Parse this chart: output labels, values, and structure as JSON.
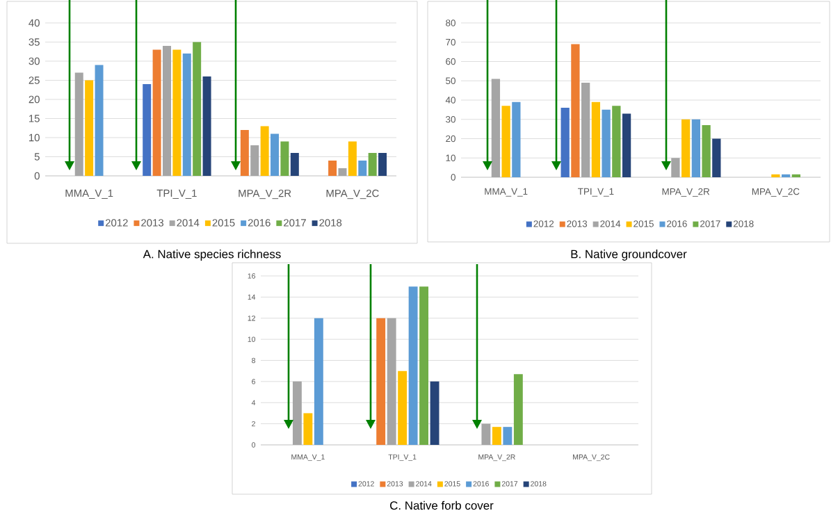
{
  "chart_data": [
    {
      "type": "bar",
      "title": "A. Native species richness",
      "categories": [
        "MMA_V_1",
        "TPI_V_1",
        "MPA_V_2R",
        "MPA_V_2C"
      ],
      "ylim": [
        0,
        40
      ],
      "yticks": [
        0,
        5,
        10,
        15,
        20,
        25,
        30,
        35,
        40
      ],
      "grid": "y",
      "legend": "bottom",
      "series": [
        {
          "name": "2012",
          "color": "#4472c4",
          "values": [
            null,
            24,
            null,
            null
          ]
        },
        {
          "name": "2013",
          "color": "#ed7d31",
          "values": [
            null,
            33,
            12,
            4
          ]
        },
        {
          "name": "2014",
          "color": "#a5a5a5",
          "values": [
            27,
            34,
            8,
            2
          ]
        },
        {
          "name": "2015",
          "color": "#ffc000",
          "values": [
            25,
            33,
            13,
            9
          ]
        },
        {
          "name": "2016",
          "color": "#5b9bd5",
          "values": [
            29,
            32,
            11,
            4
          ]
        },
        {
          "name": "2017",
          "color": "#70ad47",
          "values": [
            null,
            35,
            9,
            6
          ]
        },
        {
          "name": "2018",
          "color": "#264478",
          "values": [
            null,
            26,
            6,
            6
          ]
        }
      ]
    },
    {
      "type": "bar",
      "title": "B. Native groundcover",
      "categories": [
        "MMA_V_1",
        "TPI_V_1",
        "MPA_V_2R",
        "MPA_V_2C"
      ],
      "ylim": [
        0,
        80
      ],
      "yticks": [
        0,
        10,
        20,
        30,
        40,
        50,
        60,
        70,
        80
      ],
      "grid": "y",
      "legend": "bottom",
      "series": [
        {
          "name": "2012",
          "color": "#4472c4",
          "values": [
            null,
            36,
            null,
            null
          ]
        },
        {
          "name": "2013",
          "color": "#ed7d31",
          "values": [
            null,
            69,
            null,
            null
          ]
        },
        {
          "name": "2014",
          "color": "#a5a5a5",
          "values": [
            51,
            49,
            10,
            null
          ]
        },
        {
          "name": "2015",
          "color": "#ffc000",
          "values": [
            37,
            39,
            30,
            1.5
          ]
        },
        {
          "name": "2016",
          "color": "#5b9bd5",
          "values": [
            39,
            35,
            30,
            1.5
          ]
        },
        {
          "name": "2017",
          "color": "#70ad47",
          "values": [
            null,
            37,
            27,
            1.5
          ]
        },
        {
          "name": "2018",
          "color": "#264478",
          "values": [
            null,
            33,
            20,
            null
          ]
        }
      ]
    },
    {
      "type": "bar",
      "title": "C. Native forb cover",
      "categories": [
        "MMA_V_1",
        "TPI_V_1",
        "MPA_V_2R",
        "MPA_V_2C"
      ],
      "ylim": [
        0,
        16
      ],
      "yticks": [
        0,
        2,
        4,
        6,
        8,
        10,
        12,
        14,
        16
      ],
      "grid": "y",
      "legend": "bottom",
      "series": [
        {
          "name": "2012",
          "color": "#4472c4",
          "values": [
            null,
            null,
            null,
            null
          ]
        },
        {
          "name": "2013",
          "color": "#ed7d31",
          "values": [
            null,
            12,
            null,
            null
          ]
        },
        {
          "name": "2014",
          "color": "#a5a5a5",
          "values": [
            6,
            12,
            2,
            null
          ]
        },
        {
          "name": "2015",
          "color": "#ffc000",
          "values": [
            3,
            7,
            1.7,
            null
          ]
        },
        {
          "name": "2016",
          "color": "#5b9bd5",
          "values": [
            12,
            15,
            1.7,
            null
          ]
        },
        {
          "name": "2017",
          "color": "#70ad47",
          "values": [
            null,
            15,
            6.7,
            null
          ]
        },
        {
          "name": "2018",
          "color": "#264478",
          "values": [
            null,
            6,
            null,
            null
          ]
        }
      ]
    }
  ]
}
